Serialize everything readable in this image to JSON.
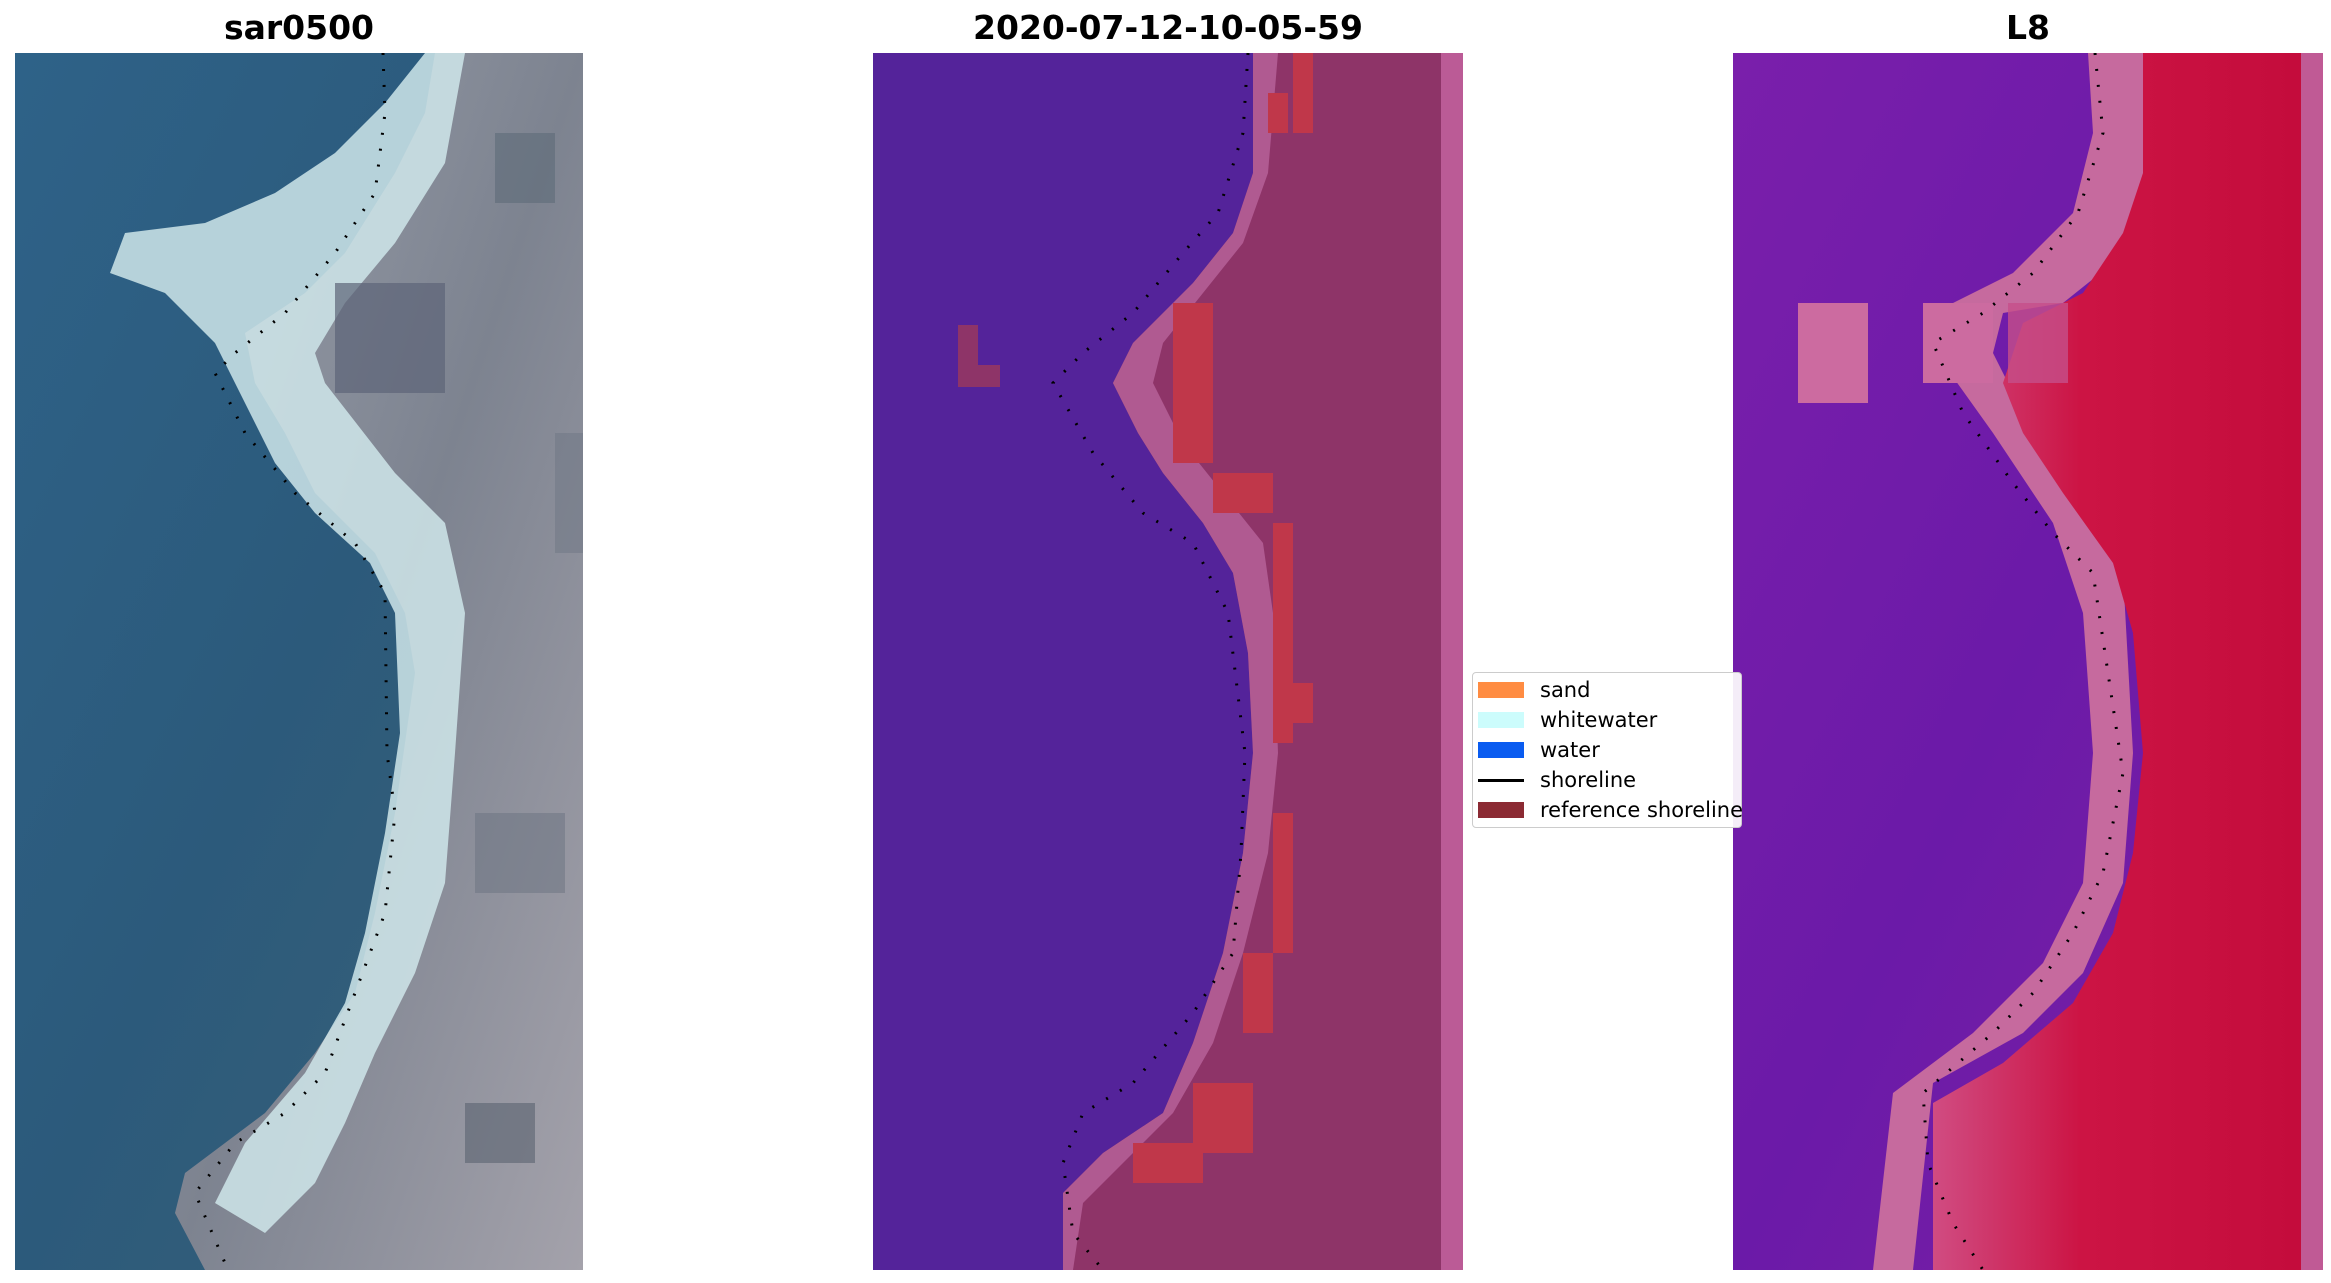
{
  "panels": [
    {
      "title": "sar0500"
    },
    {
      "title": "2020-07-12-10-05-59"
    },
    {
      "title": "L8"
    }
  ],
  "legend": {
    "items": [
      {
        "label": "sand",
        "kind": "patch",
        "color": "#ff8c42"
      },
      {
        "label": "whitewater",
        "kind": "patch",
        "color": "#ccfcfc"
      },
      {
        "label": "water",
        "kind": "patch",
        "color": "#0a5cf0"
      },
      {
        "label": "shoreline",
        "kind": "line",
        "color": "#000000"
      },
      {
        "label": "reference shoreline",
        "kind": "patch",
        "color": "#8b2a33"
      }
    ]
  },
  "colors": {
    "rgb_water": "#2d5a7a",
    "rgb_sand": "#c8e0e6",
    "rgb_land": "#8f9099",
    "class_water": "#54239a",
    "class_land": "#8e3468",
    "class_edge": "#b45e96",
    "class_ref": "#c0374a",
    "index_water": "#6a1ca8",
    "index_land": "#c8103e",
    "index_transition": "#c66a9e"
  }
}
